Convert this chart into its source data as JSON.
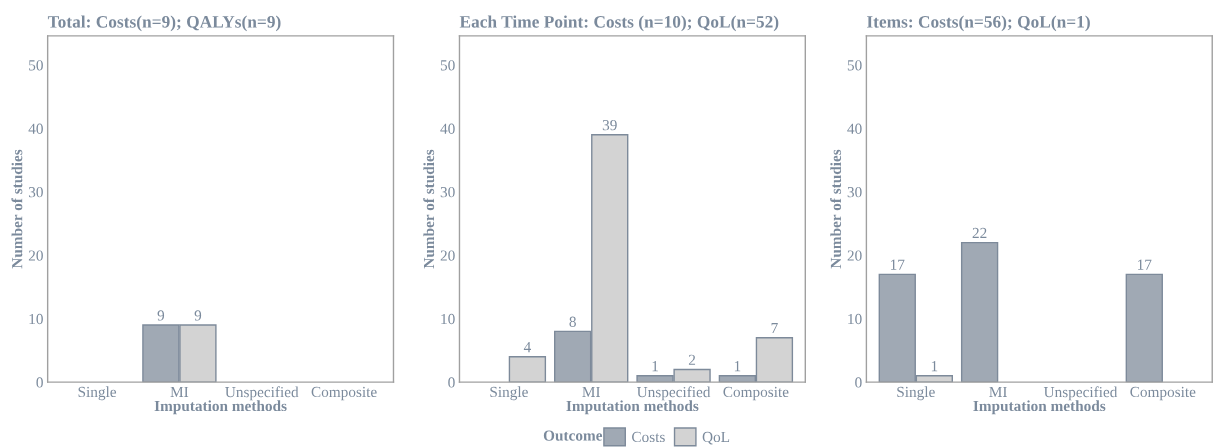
{
  "chart_data": [
    {
      "type": "bar",
      "title": "Total: Costs(n=9); QALYs(n=9)",
      "xlabel": "Imputation methods",
      "ylabel": "Number of studies",
      "categories": [
        "Single",
        "MI",
        "Unspecified",
        "Composite"
      ],
      "ylim": [
        0,
        54.6
      ],
      "yticks": [
        0,
        10,
        20,
        30,
        40,
        50
      ],
      "grid": false,
      "data_labels": true,
      "series": [
        {
          "color": "#a0a9b4",
          "values": [
            null,
            9,
            null,
            null
          ]
        },
        {
          "color": "#d3d3d3",
          "values": [
            null,
            9,
            null,
            null
          ]
        }
      ]
    },
    {
      "type": "bar",
      "title": "Each Time Point: Costs (n=10); QoL(n=52)",
      "xlabel": "Imputation methods",
      "ylabel": "Number of studies",
      "categories": [
        "Single",
        "MI",
        "Unspecified",
        "Composite"
      ],
      "ylim": [
        0,
        54.6
      ],
      "yticks": [
        0,
        10,
        20,
        30,
        40,
        50
      ],
      "grid": false,
      "data_labels": true,
      "legend": "bottom",
      "legend_title": "Outcome",
      "series": [
        {
          "name": "Costs",
          "color": "#a0a9b4",
          "values": [
            null,
            8,
            1,
            1
          ]
        },
        {
          "name": "QoL",
          "color": "#d3d3d3",
          "values": [
            4,
            39,
            2,
            7
          ]
        }
      ]
    },
    {
      "type": "bar",
      "title": "Items: Costs(n=56); QoL(n=1)",
      "xlabel": "Imputation methods",
      "ylabel": "Number of studies",
      "categories": [
        "Single",
        "MI",
        "Unspecified",
        "Composite"
      ],
      "ylim": [
        0,
        54.6
      ],
      "yticks": [
        0,
        10,
        20,
        30,
        40,
        50
      ],
      "grid": false,
      "data_labels": true,
      "series": [
        {
          "color": "#a0a9b4",
          "values": [
            17,
            22,
            null,
            17
          ]
        },
        {
          "color": "#d3d3d3",
          "values": [
            1,
            null,
            null,
            null
          ]
        }
      ]
    }
  ]
}
